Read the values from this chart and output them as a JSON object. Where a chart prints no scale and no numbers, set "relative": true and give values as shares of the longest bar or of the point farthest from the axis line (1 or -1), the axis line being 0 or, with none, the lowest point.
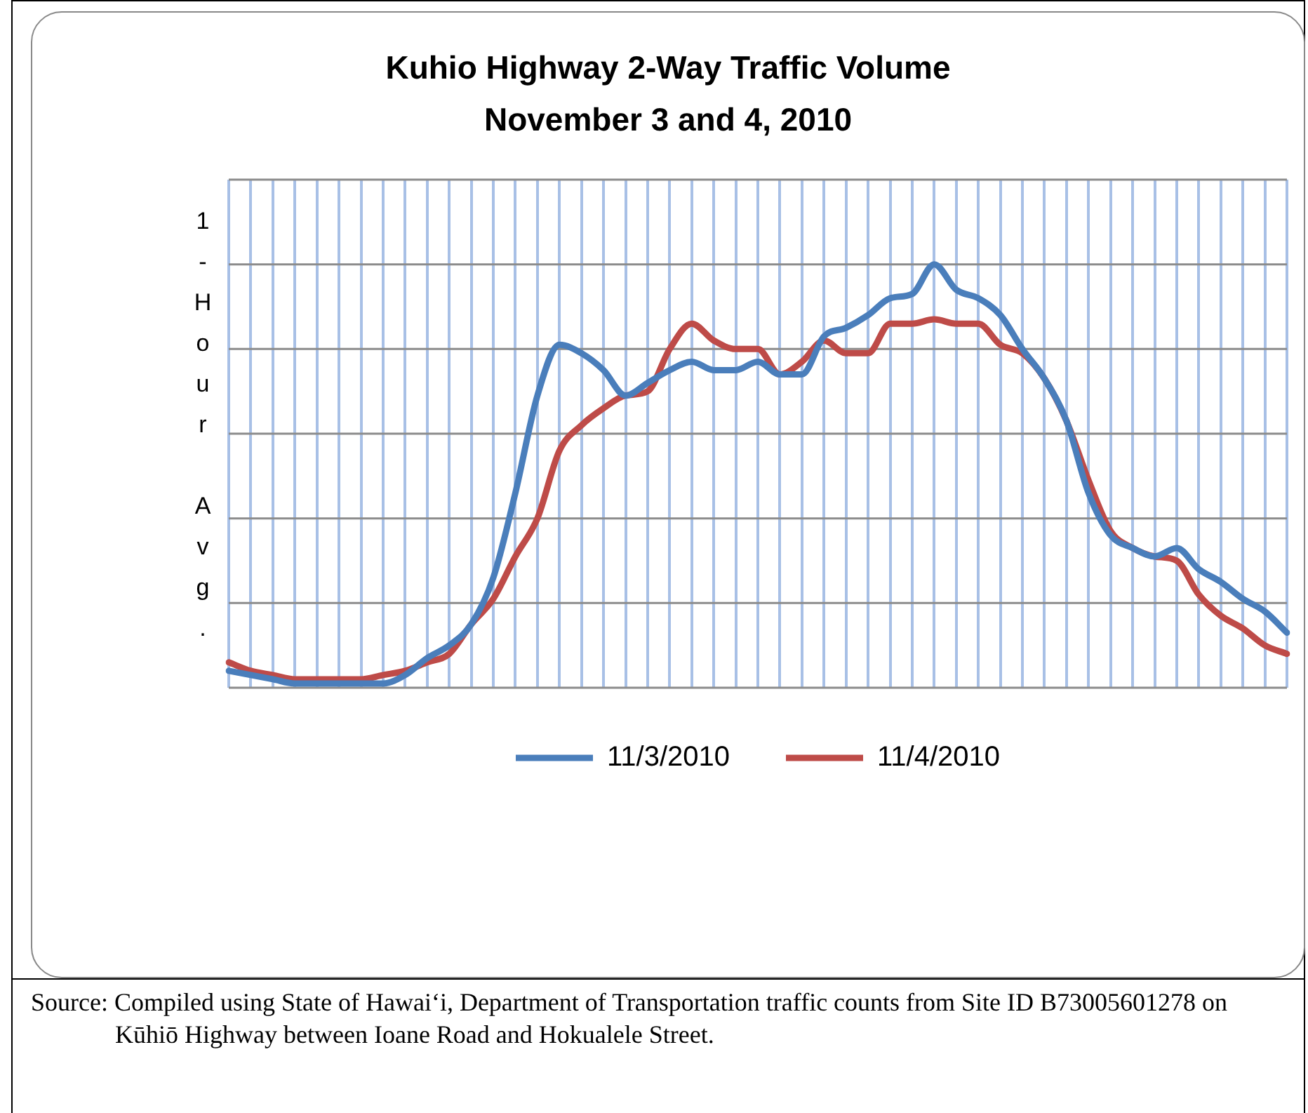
{
  "chart_data": {
    "type": "line",
    "title": "Kuhio Highway 2-Way Traffic Volume",
    "subtitle": "November 3 and 4, 2010",
    "ylabel": "1-Hour Avg.",
    "relative": true,
    "grid": true,
    "legend": "bottom",
    "marker": "none",
    "line_style": "solid",
    "categories": [
      null,
      null,
      null,
      null,
      null,
      null,
      null,
      null,
      null,
      null,
      null,
      null,
      null,
      null,
      null,
      null,
      null,
      null,
      null,
      null,
      null,
      null,
      null,
      null,
      null,
      null,
      null,
      null,
      null,
      null,
      null,
      null,
      null,
      null,
      null,
      null,
      null,
      null,
      null,
      null,
      null,
      null,
      null,
      null,
      null,
      null,
      null,
      null,
      null
    ],
    "series": [
      {
        "name": "11/3/2010",
        "color": "#4a7ebb",
        "values": [
          0.04,
          0.03,
          0.02,
          0.01,
          0.01,
          0.01,
          0.01,
          0.01,
          0.03,
          0.07,
          0.1,
          0.15,
          0.26,
          0.46,
          0.69,
          0.81,
          0.79,
          0.75,
          0.69,
          0.72,
          0.75,
          0.77,
          0.75,
          0.75,
          0.77,
          0.74,
          0.74,
          0.83,
          0.85,
          0.88,
          0.92,
          0.93,
          1,
          0.94,
          0.92,
          0.88,
          0.8,
          0.73,
          0.63,
          0.46,
          0.36,
          0.33,
          0.31,
          0.33,
          0.28,
          0.25,
          0.21,
          0.18,
          0.13
        ]
      },
      {
        "name": "11/4/2010",
        "color": "#be4b48",
        "values": [
          0.06,
          0.04,
          0.03,
          0.02,
          0.02,
          0.02,
          0.02,
          0.03,
          0.04,
          0.06,
          0.08,
          0.15,
          0.21,
          0.31,
          0.4,
          0.56,
          0.62,
          0.66,
          0.69,
          0.7,
          0.8,
          0.86,
          0.82,
          0.8,
          0.8,
          0.74,
          0.77,
          0.82,
          0.79,
          0.79,
          0.86,
          0.86,
          0.87,
          0.86,
          0.86,
          0.81,
          0.79,
          0.73,
          0.63,
          0.49,
          0.37,
          0.33,
          0.31,
          0.3,
          0.22,
          0.17,
          0.14,
          0.1,
          0.08
        ]
      }
    ],
    "annotations": [
      "Source: Compiled using State of Hawai‘i, Department of Transportation traffic counts from Site ID B73005601278 on Kūhiō Highway between Ioane Road and Hokualele Street."
    ]
  }
}
